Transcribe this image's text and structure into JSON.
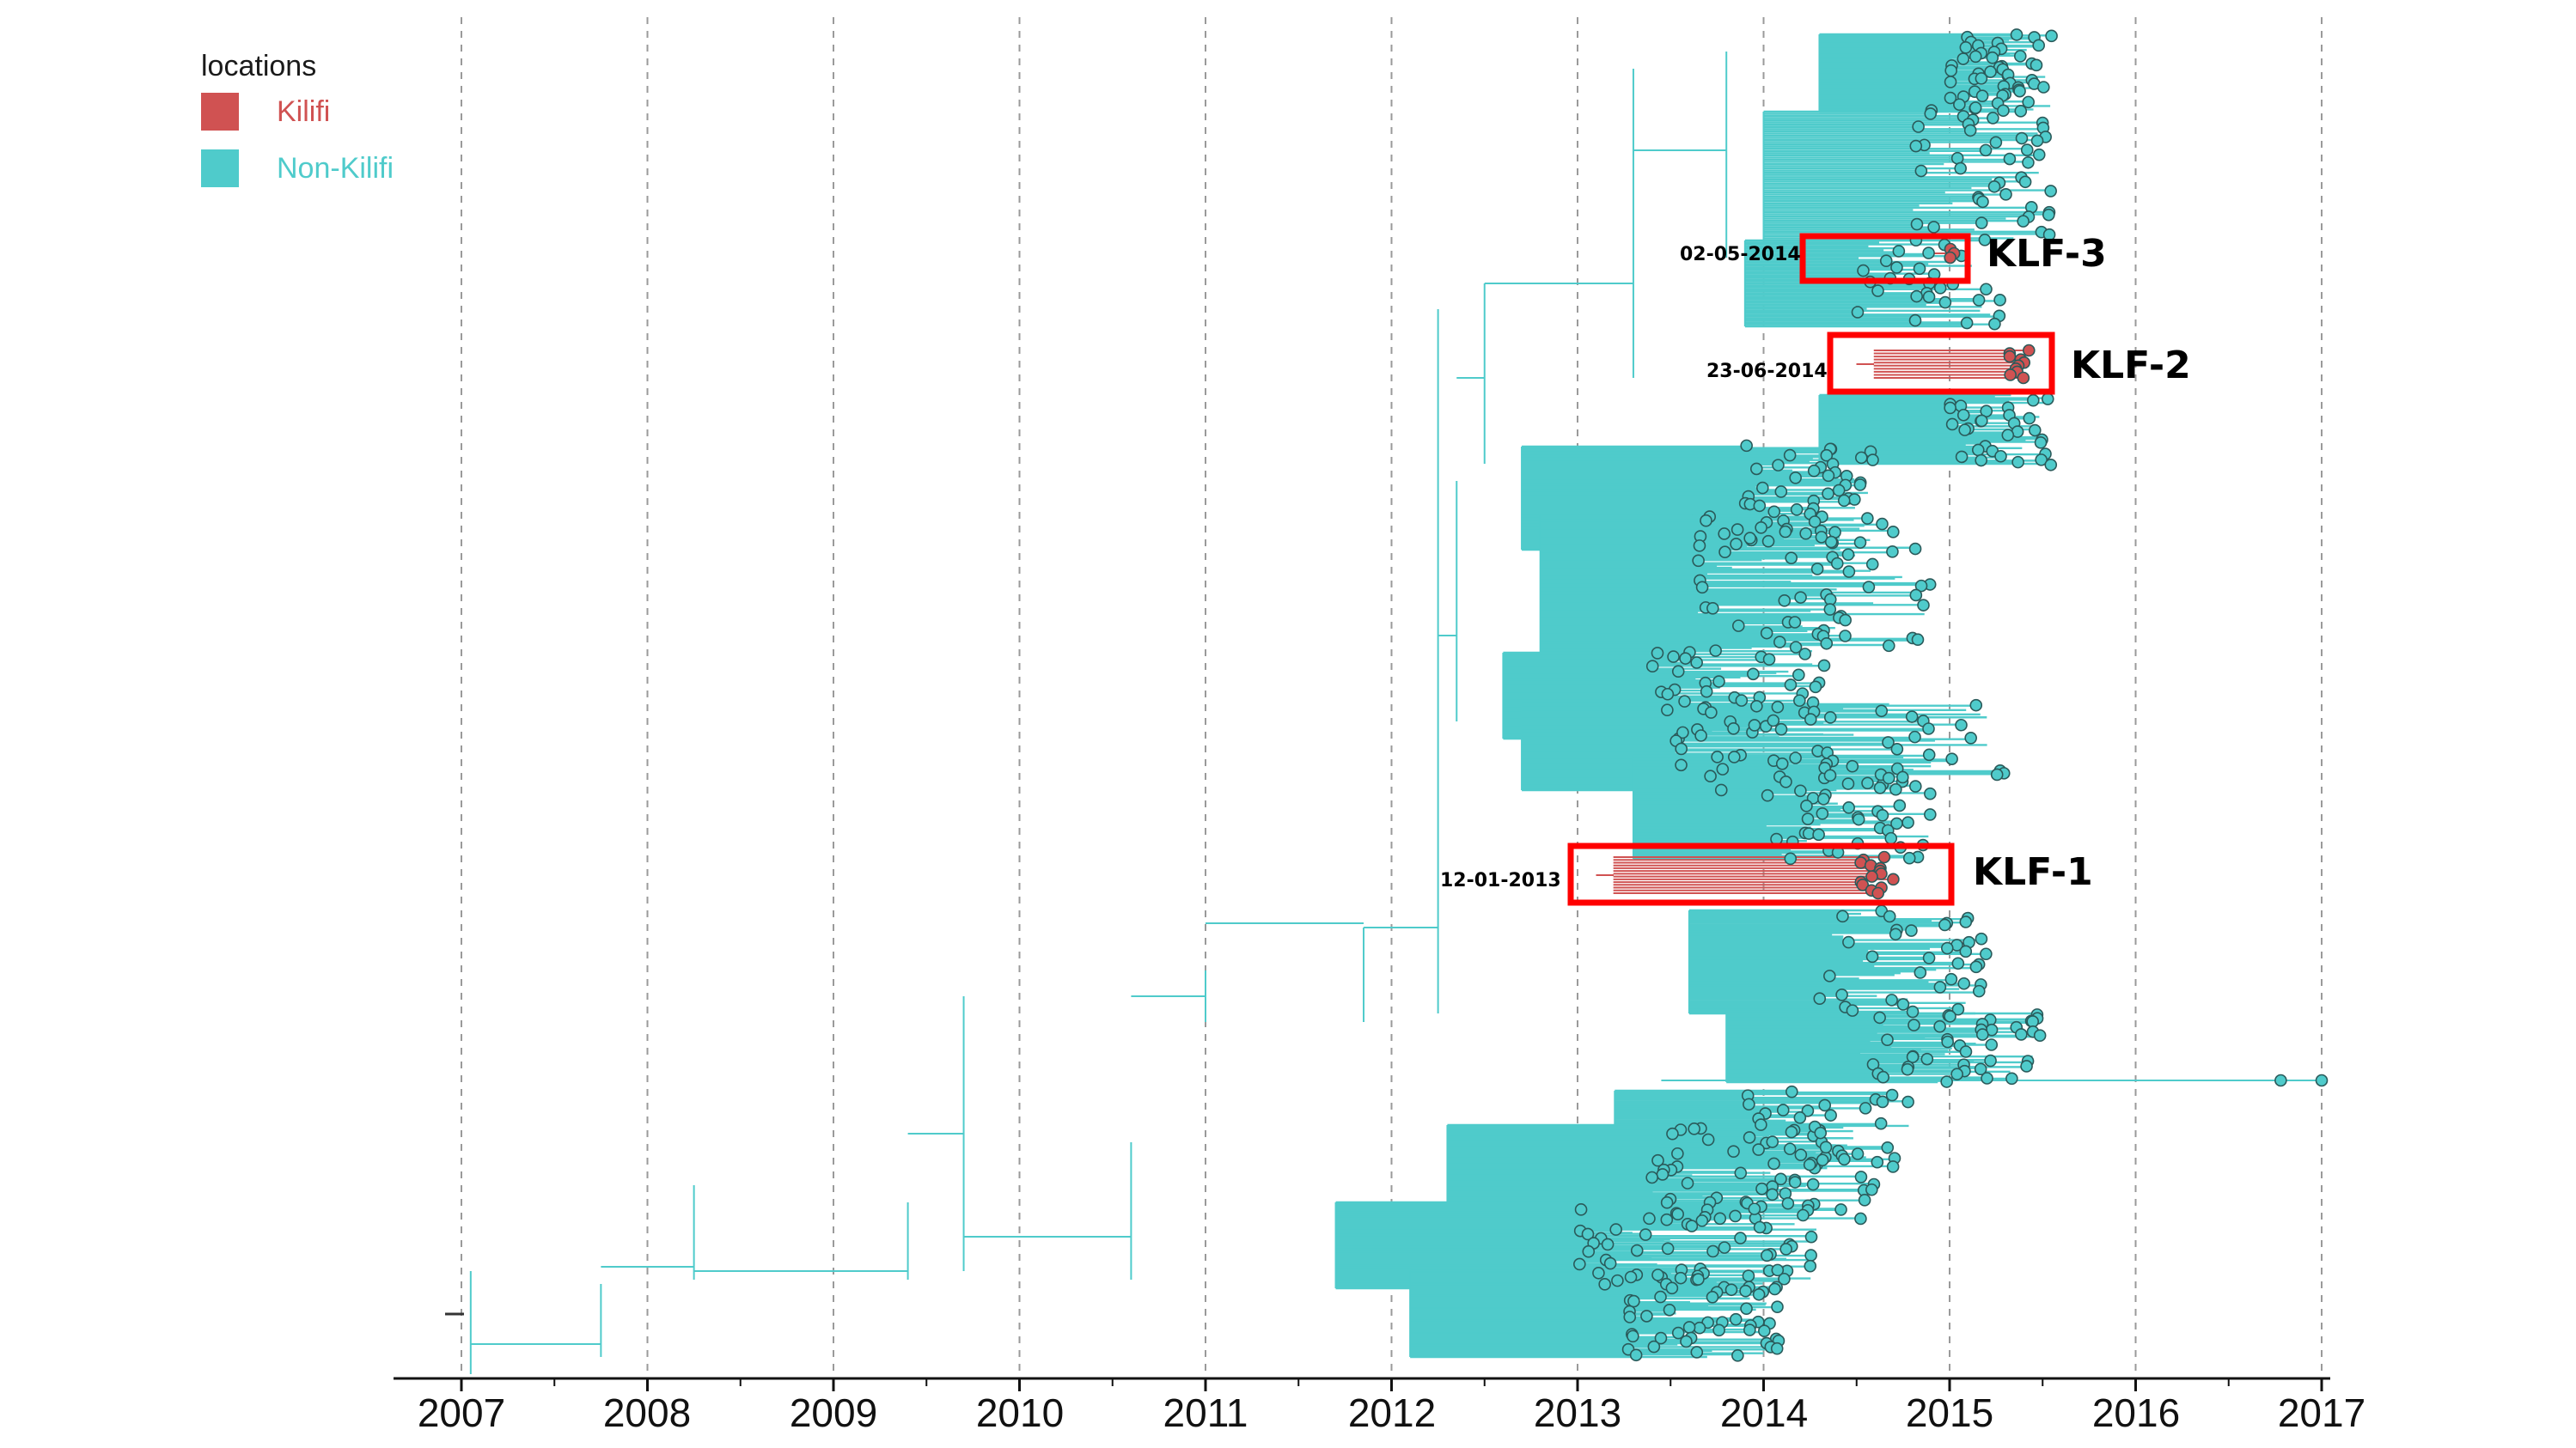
{
  "legend": {
    "title": "locations",
    "items": [
      {
        "label": "Kilifi",
        "color": "#d05252"
      },
      {
        "label": "Non-Kilifi",
        "color": "#4fcbcb"
      }
    ]
  },
  "axis": {
    "ticks": [
      "2007",
      "2008",
      "2009",
      "2010",
      "2011",
      "2012",
      "2013",
      "2014",
      "2015",
      "2016",
      "2017"
    ]
  },
  "clades": [
    {
      "name": "KLF-3",
      "tmrca": "02-05-2014",
      "color": "#ff0000"
    },
    {
      "name": "KLF-2",
      "tmrca": "23-06-2014",
      "color": "#ff0000"
    },
    {
      "name": "KLF-1",
      "tmrca": "12-01-2013",
      "color": "#ff0000"
    }
  ],
  "colors": {
    "branch": "#4fcbcb",
    "kilifi": "#d05252",
    "tip_stroke": "#2a5a5a",
    "gridline": "#9a9a9a",
    "highlight_box": "#ff0000"
  }
}
